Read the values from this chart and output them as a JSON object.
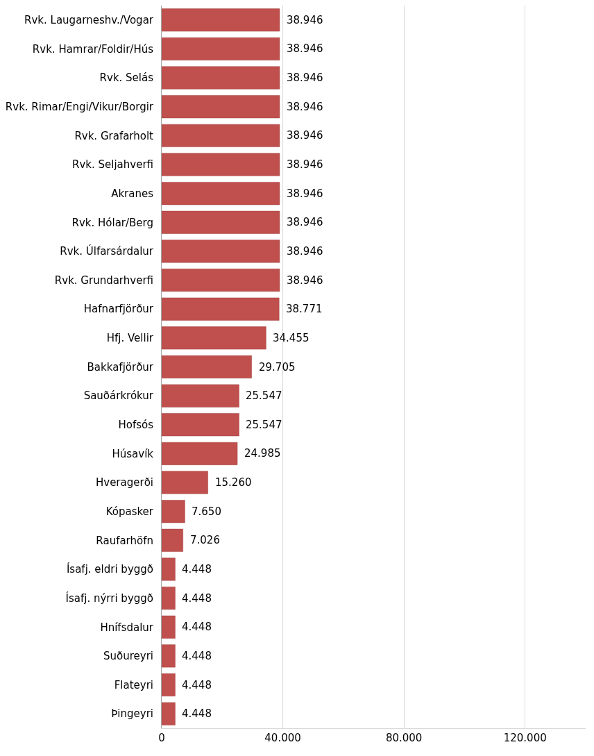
{
  "chart_data": {
    "type": "bar",
    "orientation": "horizontal",
    "categories": [
      "Rvk. Laugarneshv./Vogar",
      "Rvk. Hamrar/Foldir/Hús",
      "Rvk. Selás",
      "Rvk. Rimar/Engi/Vikur/Borgir",
      "Rvk. Grafarholt",
      "Rvk. Seljahverfi",
      "Akranes",
      "Rvk. Hólar/Berg",
      "Rvk. Úlfarsárdalur",
      "Rvk. Grundarhverfi",
      "Hafnarfjörður",
      "Hfj. Vellir",
      "Bakkafjörður",
      "Sauðárkrókur",
      "Hofsós",
      "Húsavík",
      "Hveragerði",
      "Kópasker",
      "Raufarhöfn",
      "Ísafj. eldri byggð",
      "Ísafj. nýrri byggð",
      "Hnífsdalur",
      "Suðureyri",
      "Flateyri",
      "Þingeyri"
    ],
    "values": [
      38946,
      38946,
      38946,
      38946,
      38946,
      38946,
      38946,
      38946,
      38946,
      38946,
      38771,
      34455,
      29705,
      25547,
      25547,
      24985,
      15260,
      7650,
      7026,
      4448,
      4448,
      4448,
      4448,
      4448,
      4448
    ],
    "value_labels": [
      "38.946",
      "38.946",
      "38.946",
      "38.946",
      "38.946",
      "38.946",
      "38.946",
      "38.946",
      "38.946",
      "38.946",
      "38.771",
      "34.455",
      "29.705",
      "25.547",
      "25.547",
      "24.985",
      "15.260",
      "7.650",
      "7.026",
      "4.448",
      "4.448",
      "4.448",
      "4.448",
      "4.448",
      "4.448"
    ],
    "color": "#c0504d",
    "xlim": [
      0,
      140000
    ],
    "xticks": [
      0,
      {
        "value": 40000,
        "label": "40.000"
      },
      {
        "value": 80000,
        "label": "80.000"
      },
      {
        "value": 120000,
        "label": "120.000"
      }
    ],
    "grid": "x",
    "legend": false
  }
}
